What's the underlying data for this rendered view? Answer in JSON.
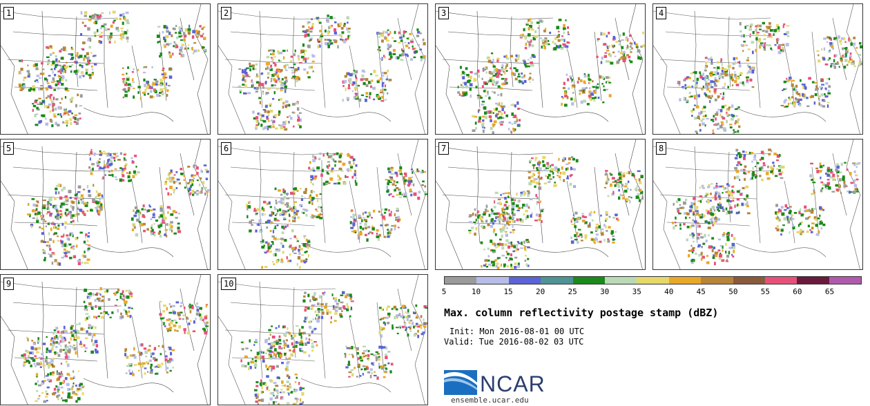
{
  "panels": [
    {
      "label": "1"
    },
    {
      "label": "2"
    },
    {
      "label": "3"
    },
    {
      "label": "4"
    },
    {
      "label": "5"
    },
    {
      "label": "6"
    },
    {
      "label": "7"
    },
    {
      "label": "8"
    },
    {
      "label": "9"
    },
    {
      "label": "10"
    }
  ],
  "colorbar": {
    "colors": [
      "#9b9b9b",
      "#b7bde8",
      "#5b63d6",
      "#4e9494",
      "#1a8a1a",
      "#bad9b5",
      "#e6d86a",
      "#e8a828",
      "#b78438",
      "#8a5a3c",
      "#e8507a",
      "#6a1a3c",
      "#b05aae"
    ],
    "ticks": [
      "5",
      "10",
      "15",
      "20",
      "25",
      "30",
      "35",
      "40",
      "45",
      "50",
      "55",
      "60",
      "65"
    ]
  },
  "title": "Max. column reflectivity postage stamp (dBZ)",
  "init": "Init: Mon 2016-08-01 00 UTC",
  "valid": "Valid: Tue 2016-08-02 03 UTC",
  "logo": {
    "name": "NCAR",
    "url": "ensemble.ucar.edu"
  }
}
